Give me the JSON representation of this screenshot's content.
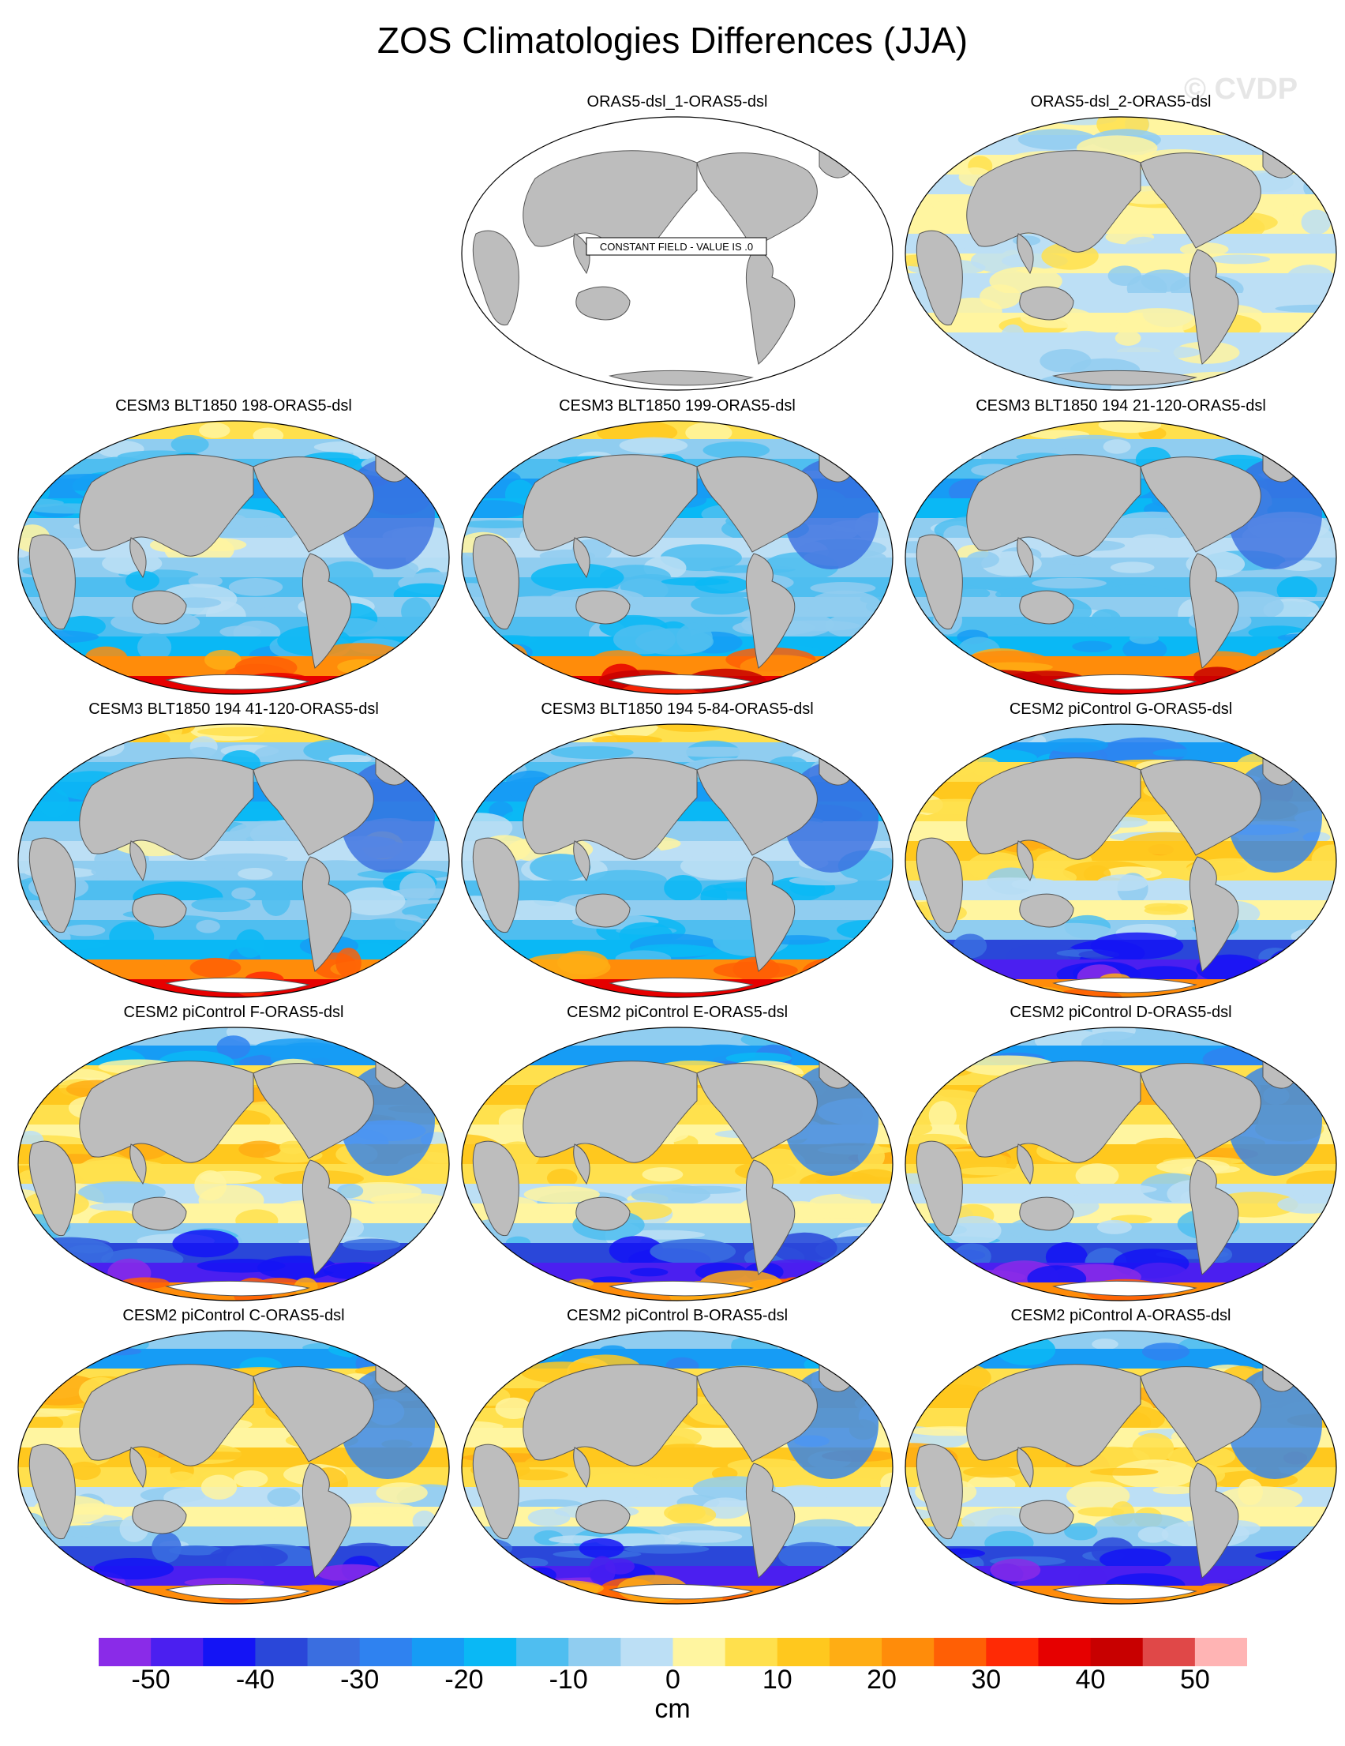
{
  "title": "ZOS Climatologies Differences (JJA)",
  "watermark": "© CVDP",
  "constant_field_label": "CONSTANT FIELD - VALUE IS .0",
  "panels": [
    {
      "name": "ORAS5-dsl_1-ORAS5-dsl",
      "pattern": "constant"
    },
    {
      "name": "ORAS5-dsl_2-ORAS5-dsl",
      "pattern": "light"
    },
    {
      "name": "CESM3 BLT1850 198-ORAS5-dsl",
      "pattern": "cesm3"
    },
    {
      "name": "CESM3 BLT1850 199-ORAS5-dsl",
      "pattern": "cesm3"
    },
    {
      "name": "CESM3 BLT1850 194 21-120-ORAS5-dsl",
      "pattern": "cesm3"
    },
    {
      "name": "CESM3 BLT1850 194 41-120-ORAS5-dsl",
      "pattern": "cesm3"
    },
    {
      "name": "CESM3 BLT1850 194 5-84-ORAS5-dsl",
      "pattern": "cesm3"
    },
    {
      "name": "CESM2 piControl G-ORAS5-dsl",
      "pattern": "cesm2"
    },
    {
      "name": "CESM2 piControl F-ORAS5-dsl",
      "pattern": "cesm2"
    },
    {
      "name": "CESM2 piControl E-ORAS5-dsl",
      "pattern": "cesm2"
    },
    {
      "name": "CESM2 piControl D-ORAS5-dsl",
      "pattern": "cesm2"
    },
    {
      "name": "CESM2 piControl C-ORAS5-dsl",
      "pattern": "cesm2"
    },
    {
      "name": "CESM2 piControl B-ORAS5-dsl",
      "pattern": "cesm2"
    },
    {
      "name": "CESM2 piControl A-ORAS5-dsl",
      "pattern": "cesm2"
    }
  ],
  "colorbar": {
    "units": "cm",
    "tick_labels": [
      "-50",
      "-40",
      "-30",
      "-20",
      "-10",
      "0",
      "10",
      "20",
      "30",
      "40",
      "50"
    ],
    "colors": [
      "#8a2be8",
      "#4b1ff0",
      "#1414f5",
      "#2a47d9",
      "#3a6ee0",
      "#2f82f0",
      "#169cf5",
      "#0ab8f5",
      "#4fbef0",
      "#90cdf0",
      "#bcdff5",
      "#fff5a0",
      "#ffe04d",
      "#ffc81e",
      "#ffad14",
      "#ff8c0a",
      "#ff5f05",
      "#ff2a05",
      "#e60000",
      "#c80000",
      "#e04848",
      "#ffb4b4"
    ]
  },
  "colors": {
    "land": "#bdbdbd",
    "ocean_constant": "#ffffff",
    "coast": "#555555"
  }
}
